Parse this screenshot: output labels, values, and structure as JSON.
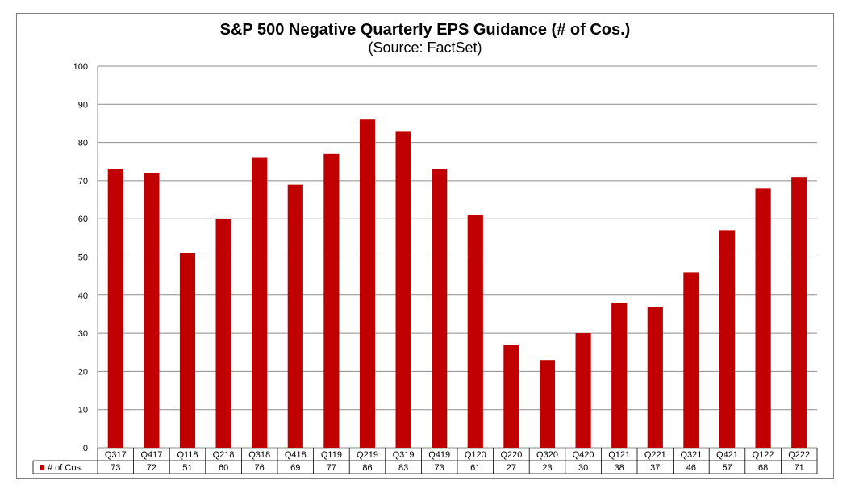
{
  "chart_data": {
    "type": "bar",
    "title": "S&P 500 Negative Quarterly EPS Guidance (# of Cos.)",
    "subtitle": "(Source: FactSet)",
    "categories": [
      "Q317",
      "Q417",
      "Q118",
      "Q218",
      "Q318",
      "Q418",
      "Q119",
      "Q219",
      "Q319",
      "Q419",
      "Q120",
      "Q220",
      "Q320",
      "Q420",
      "Q121",
      "Q221",
      "Q321",
      "Q421",
      "Q122",
      "Q222"
    ],
    "series": [
      {
        "name": "# of Cos.",
        "values": [
          73,
          72,
          51,
          60,
          76,
          69,
          77,
          86,
          83,
          73,
          61,
          27,
          23,
          30,
          38,
          37,
          46,
          57,
          68,
          71
        ]
      }
    ],
    "ylim": [
      0,
      100
    ],
    "yticks": [
      0,
      10,
      20,
      30,
      40,
      50,
      60,
      70,
      80,
      90,
      100
    ],
    "grid": true,
    "legend": "data-table",
    "bar_color": "#c00000"
  }
}
